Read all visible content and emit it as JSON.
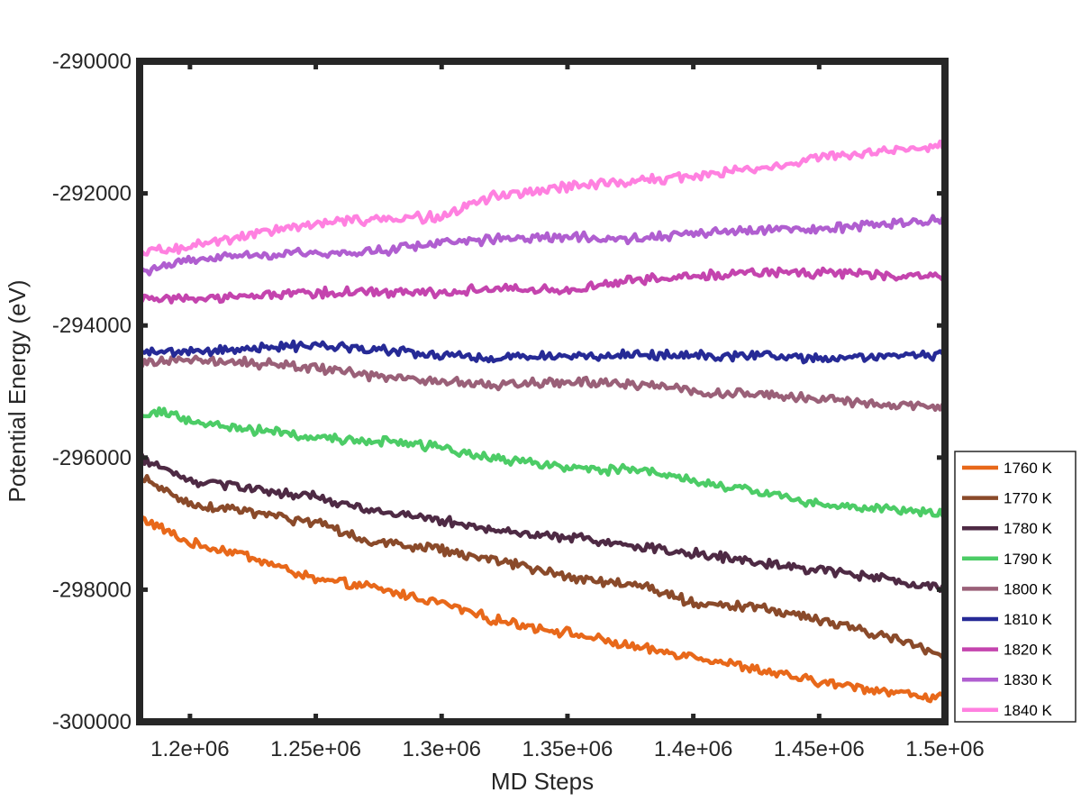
{
  "chart_data": {
    "type": "line",
    "title": "",
    "xlabel": "MD Steps",
    "ylabel": "Potential Energy (eV)",
    "xlim": [
      1180000,
      1500000
    ],
    "ylim": [
      -300000,
      -290000
    ],
    "x_ticks": [
      1200000,
      1250000,
      1300000,
      1350000,
      1400000,
      1450000,
      1500000
    ],
    "x_tick_labels": [
      "1.2e+06",
      "1.25e+06",
      "1.3e+06",
      "1.35e+06",
      "1.4e+06",
      "1.45e+06",
      "1.5e+06"
    ],
    "y_ticks": [
      -300000,
      -298000,
      -296000,
      -294000,
      -292000,
      -290000
    ],
    "y_tick_labels": [
      "-300000",
      "-298000",
      "-296000",
      "-294000",
      "-292000",
      "-290000"
    ],
    "grid": false,
    "legend_position": "outside-right-bottom",
    "series": [
      {
        "name": "1760 K",
        "color": "#e8681a",
        "x": [
          1180000,
          1200000,
          1220000,
          1250000,
          1270000,
          1300000,
          1320000,
          1350000,
          1380000,
          1400000,
          1430000,
          1450000,
          1480000,
          1500000
        ],
        "y": [
          -296900,
          -297300,
          -297450,
          -297850,
          -297950,
          -298200,
          -298450,
          -298650,
          -298900,
          -299000,
          -299250,
          -299400,
          -299550,
          -299650
        ]
      },
      {
        "name": "1770 K",
        "color": "#8a4a2a",
        "x": [
          1180000,
          1200000,
          1220000,
          1250000,
          1270000,
          1300000,
          1320000,
          1350000,
          1380000,
          1400000,
          1430000,
          1450000,
          1480000,
          1500000
        ],
        "y": [
          -296300,
          -296700,
          -296800,
          -297000,
          -297250,
          -297400,
          -297550,
          -297800,
          -297950,
          -298200,
          -298300,
          -298450,
          -298750,
          -299000
        ]
      },
      {
        "name": "1780 K",
        "color": "#4e2a44",
        "x": [
          1180000,
          1200000,
          1220000,
          1250000,
          1270000,
          1300000,
          1320000,
          1350000,
          1380000,
          1400000,
          1430000,
          1450000,
          1480000,
          1500000
        ],
        "y": [
          -296000,
          -296350,
          -296450,
          -296600,
          -296800,
          -296950,
          -297100,
          -297200,
          -297350,
          -297450,
          -297600,
          -297700,
          -297850,
          -298000
        ]
      },
      {
        "name": "1790 K",
        "color": "#4ccc66",
        "x": [
          1180000,
          1190000,
          1200000,
          1220000,
          1250000,
          1280000,
          1300000,
          1320000,
          1350000,
          1380000,
          1400000,
          1430000,
          1450000,
          1470000,
          1500000
        ],
        "y": [
          -295400,
          -295300,
          -295450,
          -295550,
          -295700,
          -295750,
          -295850,
          -296000,
          -296150,
          -296200,
          -296350,
          -296550,
          -296700,
          -296750,
          -296850
        ]
      },
      {
        "name": "1800 K",
        "color": "#9a6078",
        "x": [
          1180000,
          1200000,
          1220000,
          1250000,
          1270000,
          1300000,
          1320000,
          1350000,
          1380000,
          1400000,
          1430000,
          1450000,
          1480000,
          1500000
        ],
        "y": [
          -294550,
          -294500,
          -294550,
          -294650,
          -294750,
          -294850,
          -294900,
          -294850,
          -294900,
          -295000,
          -295050,
          -295100,
          -295200,
          -295250
        ]
      },
      {
        "name": "1810 K",
        "color": "#262a96",
        "x": [
          1180000,
          1200000,
          1220000,
          1250000,
          1270000,
          1300000,
          1320000,
          1350000,
          1380000,
          1400000,
          1430000,
          1450000,
          1480000,
          1500000
        ],
        "y": [
          -294400,
          -294400,
          -294350,
          -294300,
          -294350,
          -294450,
          -294500,
          -294450,
          -294450,
          -294450,
          -294450,
          -294500,
          -294450,
          -294450
        ]
      },
      {
        "name": "1820 K",
        "color": "#c444ae",
        "x": [
          1180000,
          1200000,
          1220000,
          1250000,
          1270000,
          1300000,
          1320000,
          1350000,
          1380000,
          1400000,
          1430000,
          1450000,
          1480000,
          1500000
        ],
        "y": [
          -293600,
          -293600,
          -293550,
          -293500,
          -293500,
          -293500,
          -293450,
          -293450,
          -293300,
          -293250,
          -293200,
          -293200,
          -293250,
          -293250
        ]
      },
      {
        "name": "1830 K",
        "color": "#b05ed0",
        "x": [
          1180000,
          1200000,
          1220000,
          1250000,
          1270000,
          1300000,
          1320000,
          1350000,
          1380000,
          1400000,
          1430000,
          1450000,
          1480000,
          1500000
        ],
        "y": [
          -293200,
          -293000,
          -292950,
          -292900,
          -292900,
          -292750,
          -292700,
          -292650,
          -292700,
          -292600,
          -292550,
          -292550,
          -292450,
          -292400
        ]
      },
      {
        "name": "1840 K",
        "color": "#ff80e0",
        "x": [
          1180000,
          1200000,
          1220000,
          1250000,
          1270000,
          1300000,
          1320000,
          1350000,
          1380000,
          1400000,
          1430000,
          1450000,
          1480000,
          1500000
        ],
        "y": [
          -292900,
          -292800,
          -292650,
          -292450,
          -292400,
          -292350,
          -292050,
          -291900,
          -291800,
          -291750,
          -291600,
          -291450,
          -291350,
          -291250
        ]
      }
    ]
  }
}
